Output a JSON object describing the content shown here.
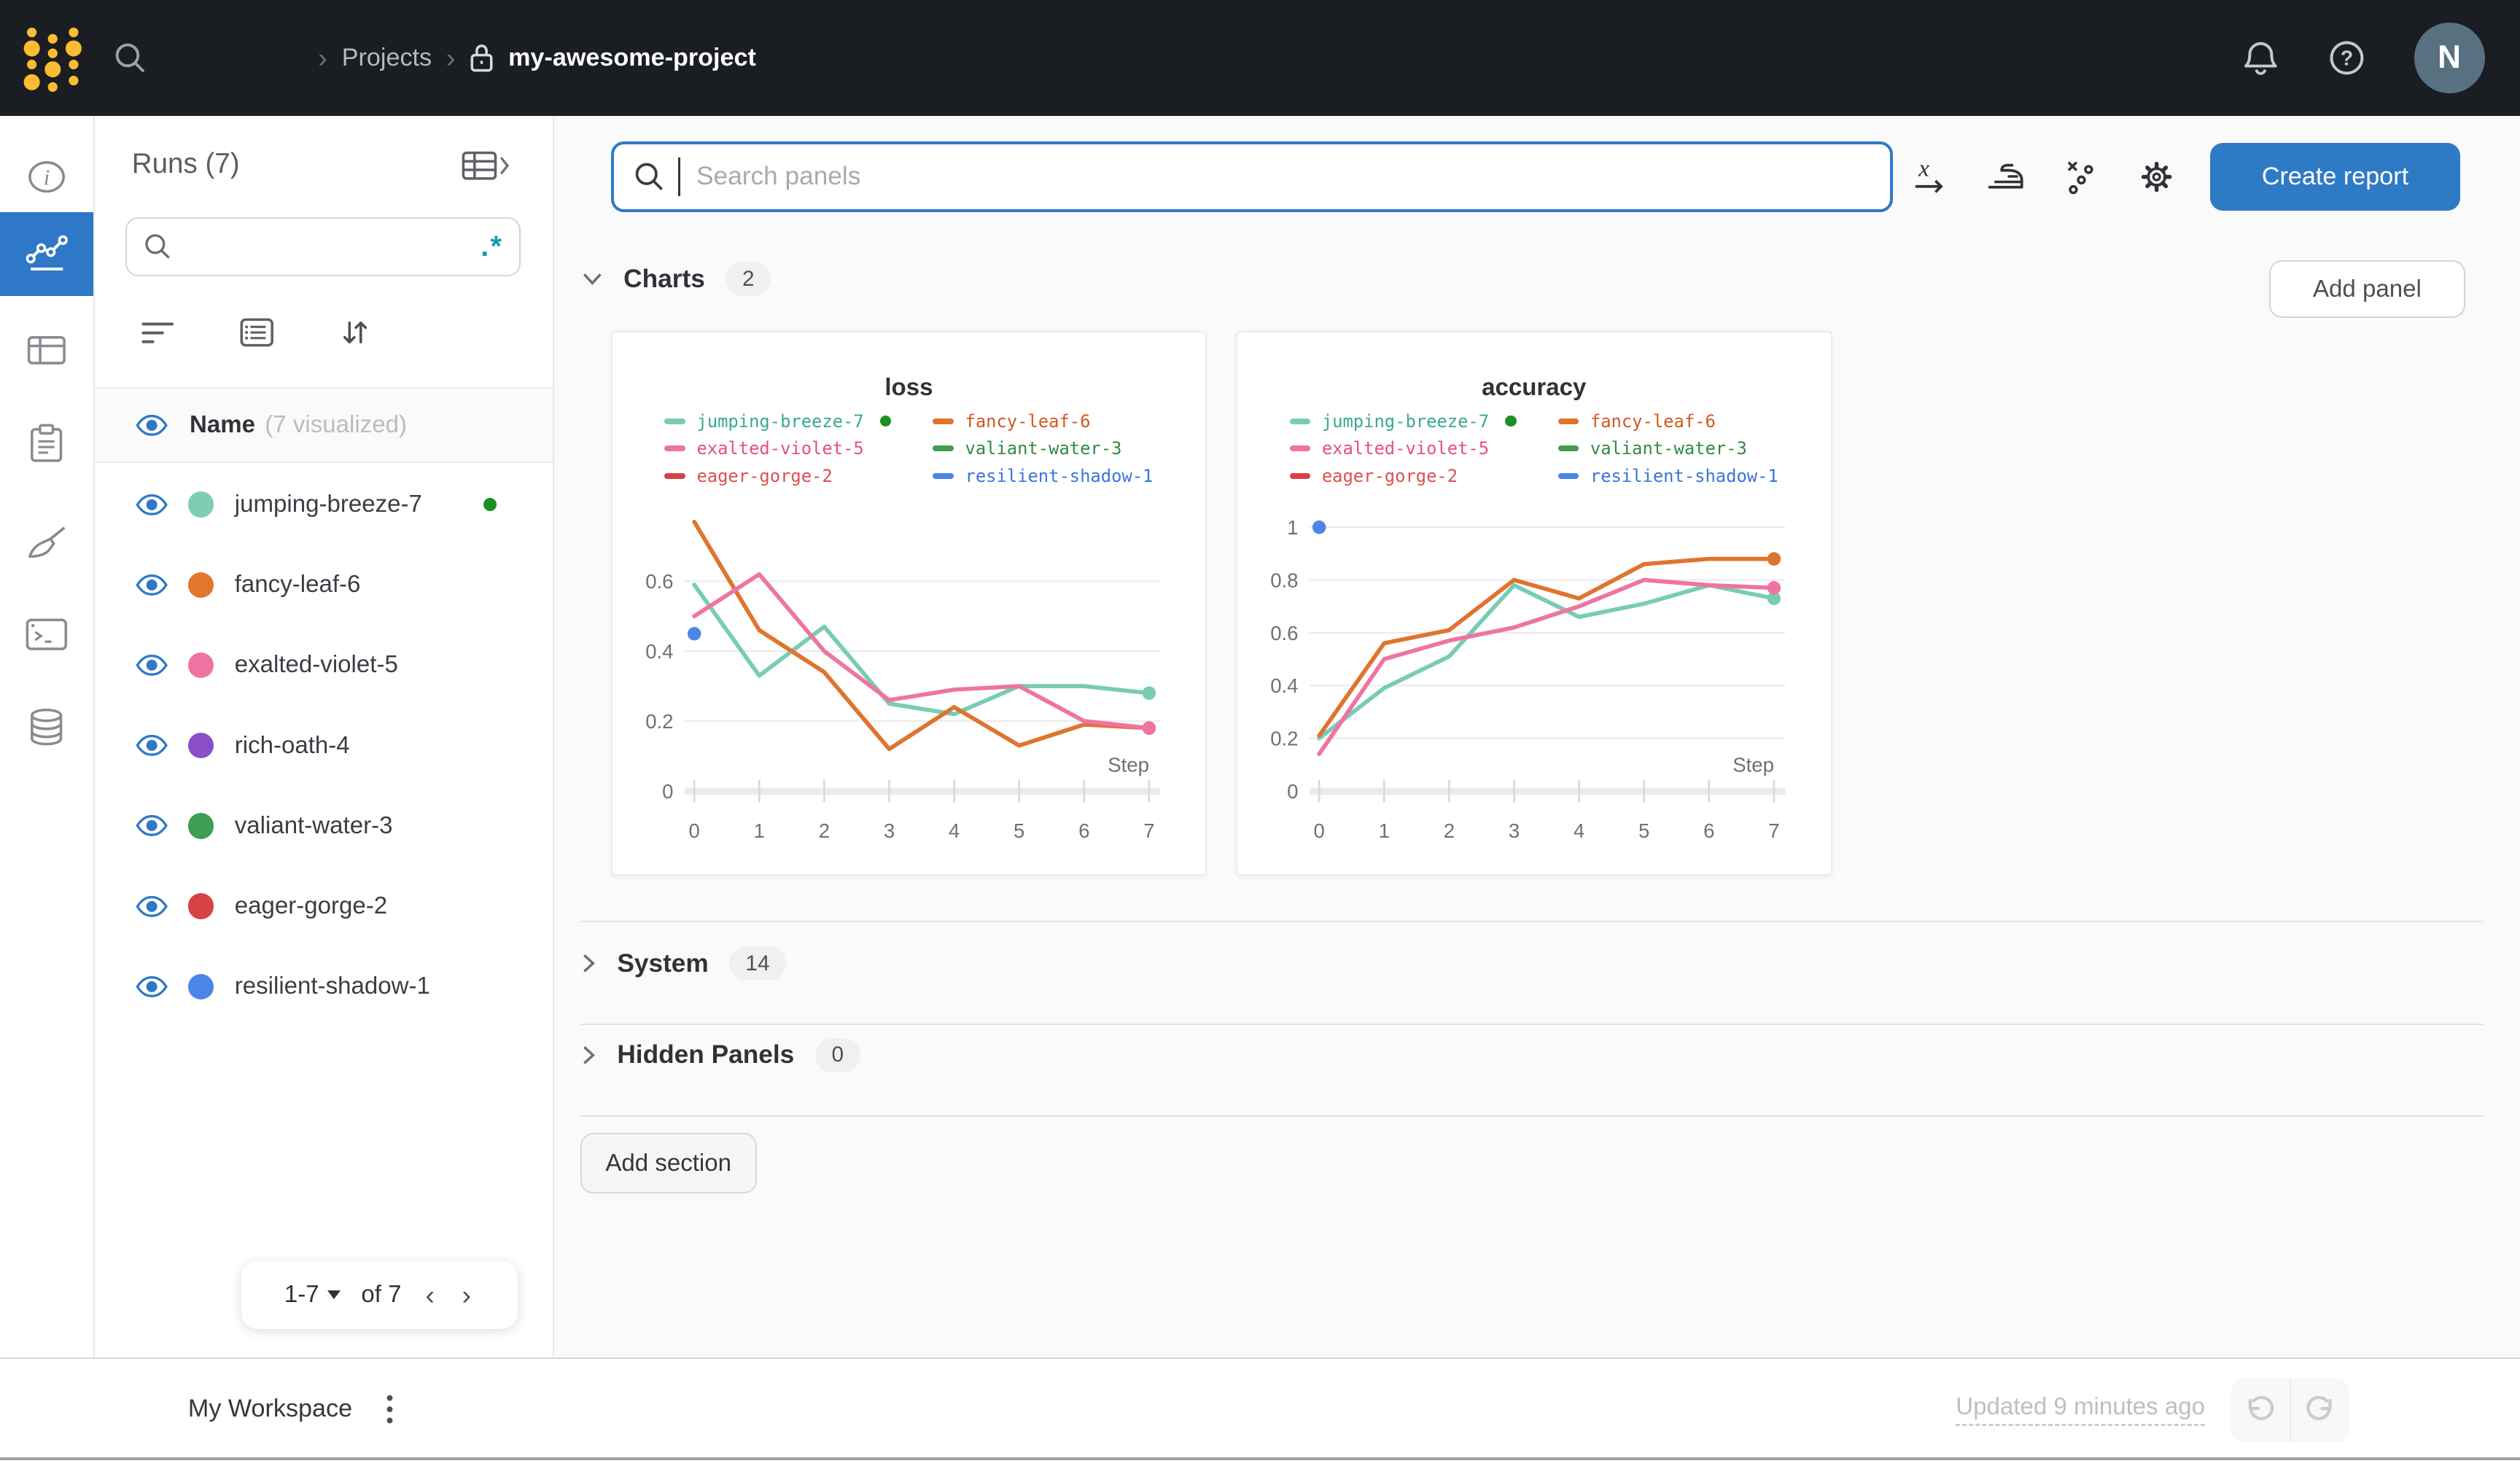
{
  "navbar": {
    "separator": "›",
    "breadcrumb": {
      "projects": "Projects",
      "project_name": "my-awesome-project"
    },
    "avatar_initial": "N",
    "help_glyph": "?"
  },
  "colors": {
    "topbar_bg": "#1a1d21",
    "accent_blue": "#2e78c7",
    "logo_gold": "#fcbc32",
    "regex_teal": "#0e9fb0",
    "active_run_green": "#1d9021"
  },
  "sidebar": {
    "runs_header": "Runs (7)",
    "regex_toggle": ".*",
    "name_header": "Name",
    "name_suffix": "(7 visualized)",
    "runs": [
      {
        "name": "jumping-breeze-7",
        "color": "#7ecdb5",
        "active": true
      },
      {
        "name": "fancy-leaf-6",
        "color": "#e2762f",
        "active": false
      },
      {
        "name": "exalted-violet-5",
        "color": "#ee72a2",
        "active": false
      },
      {
        "name": "rich-oath-4",
        "color": "#8a4fc8",
        "active": false
      },
      {
        "name": "valiant-water-3",
        "color": "#3f9e51",
        "active": false
      },
      {
        "name": "eager-gorge-2",
        "color": "#d64345",
        "active": false
      },
      {
        "name": "resilient-shadow-1",
        "color": "#4c85e5",
        "active": false
      }
    ],
    "pagination": {
      "range": "1-7",
      "of": "of 7",
      "prev": "‹",
      "next": "›"
    }
  },
  "toolbar": {
    "search_placeholder": "Search panels",
    "create_report": "Create report"
  },
  "sections": {
    "charts": {
      "label": "Charts",
      "count": "2",
      "add_panel": "Add panel"
    },
    "system": {
      "label": "System",
      "count": "14"
    },
    "hidden": {
      "label": "Hidden Panels",
      "count": "0"
    },
    "add_section": "Add section"
  },
  "footer": {
    "workspace": "My Workspace",
    "kebab": "⋮",
    "updated": "Updated 9 minutes ago"
  },
  "chart_data": [
    {
      "type": "line",
      "title": "loss",
      "xlabel": "Step",
      "x": [
        0,
        1,
        2,
        3,
        4,
        5,
        6,
        7
      ],
      "ylim": [
        0,
        0.8
      ],
      "yticks": [
        0,
        0.2,
        0.4,
        0.6
      ],
      "grid": true,
      "legend_position": "top",
      "series": [
        {
          "name": "jumping-breeze-7",
          "color": "#79ccb4",
          "label_color": "#3aa891",
          "active": true,
          "end_dot": true,
          "values": [
            0.59,
            0.33,
            0.47,
            0.25,
            0.22,
            0.3,
            0.3,
            0.28
          ]
        },
        {
          "name": "fancy-leaf-6",
          "color": "#e0742e",
          "label_color": "#d35720",
          "active": false,
          "end_dot": true,
          "values": [
            0.77,
            0.46,
            0.34,
            0.12,
            0.24,
            0.13,
            0.19,
            0.18
          ]
        },
        {
          "name": "exalted-violet-5",
          "color": "#ee74a4",
          "label_color": "#e74b8e",
          "active": false,
          "end_dot": true,
          "values": [
            0.5,
            0.62,
            0.4,
            0.26,
            0.29,
            0.3,
            0.2,
            0.18
          ]
        },
        {
          "name": "valiant-water-3",
          "color": "#3f9e51",
          "label_color": "#2e8b44",
          "active": false,
          "end_dot": false,
          "values": []
        },
        {
          "name": "eager-gorge-2",
          "color": "#d64345",
          "label_color": "#dd4f4f",
          "active": false,
          "end_dot": false,
          "values": []
        },
        {
          "name": "resilient-shadow-1",
          "color": "#4c85e5",
          "label_color": "#3b74da",
          "active": false,
          "end_dot": false,
          "values": [
            0.45
          ]
        }
      ]
    },
    {
      "type": "line",
      "title": "accuracy",
      "xlabel": "Step",
      "x": [
        0,
        1,
        2,
        3,
        4,
        5,
        6,
        7
      ],
      "ylim": [
        0,
        1.06
      ],
      "yticks": [
        0,
        0.2,
        0.4,
        0.6,
        0.8,
        1
      ],
      "grid": true,
      "legend_position": "top",
      "series": [
        {
          "name": "jumping-breeze-7",
          "color": "#79ccb4",
          "label_color": "#3aa891",
          "active": true,
          "end_dot": true,
          "values": [
            0.2,
            0.39,
            0.51,
            0.78,
            0.66,
            0.71,
            0.78,
            0.73
          ]
        },
        {
          "name": "fancy-leaf-6",
          "color": "#e0742e",
          "label_color": "#d35720",
          "active": false,
          "end_dot": true,
          "values": [
            0.21,
            0.56,
            0.61,
            0.8,
            0.73,
            0.86,
            0.88,
            0.88
          ]
        },
        {
          "name": "exalted-violet-5",
          "color": "#ee74a4",
          "label_color": "#e74b8e",
          "active": false,
          "end_dot": true,
          "values": [
            0.14,
            0.5,
            0.57,
            0.62,
            0.7,
            0.8,
            0.78,
            0.77
          ]
        },
        {
          "name": "valiant-water-3",
          "color": "#3f9e51",
          "label_color": "#2e8b44",
          "active": false,
          "end_dot": false,
          "values": []
        },
        {
          "name": "eager-gorge-2",
          "color": "#d64345",
          "label_color": "#dd4f4f",
          "active": false,
          "end_dot": false,
          "values": []
        },
        {
          "name": "resilient-shadow-1",
          "color": "#4c85e5",
          "label_color": "#3b74da",
          "active": false,
          "end_dot": false,
          "values": [
            1.0
          ]
        }
      ]
    }
  ]
}
